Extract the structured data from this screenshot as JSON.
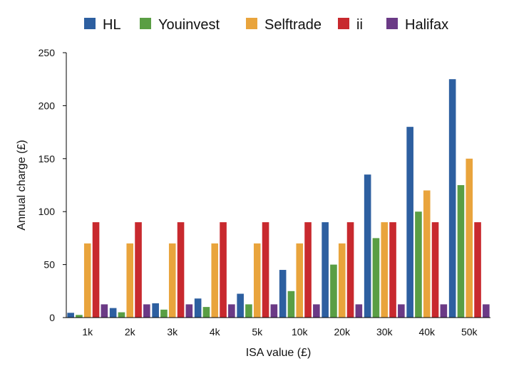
{
  "chart_data": {
    "type": "bar",
    "title": "",
    "xlabel": "ISA value (£)",
    "ylabel": "Annual charge (£)",
    "ylim": [
      0,
      250
    ],
    "yticks": [
      0,
      50,
      100,
      150,
      200,
      250
    ],
    "grid": false,
    "legend_position": "top",
    "categories": [
      "1k",
      "2k",
      "3k",
      "4k",
      "5k",
      "10k",
      "20k",
      "30k",
      "40k",
      "50k"
    ],
    "series": [
      {
        "name": "HL",
        "color": "#2d5fa0",
        "values": [
          4.5,
          9,
          13.5,
          18,
          22.5,
          45,
          90,
          135,
          180,
          225
        ]
      },
      {
        "name": "Youinvest",
        "color": "#5a9e44",
        "values": [
          2.5,
          5,
          7.5,
          10,
          12.5,
          25,
          50,
          75,
          100,
          125
        ]
      },
      {
        "name": "Selftrade",
        "color": "#e9a43c",
        "values": [
          70,
          70,
          70,
          70,
          70,
          70,
          70,
          90,
          120,
          150
        ]
      },
      {
        "name": "ii",
        "color": "#c8292e",
        "values": [
          90,
          90,
          90,
          90,
          90,
          90,
          90,
          90,
          90,
          90
        ]
      },
      {
        "name": "Halifax",
        "color": "#6b3a86",
        "values": [
          12.5,
          12.5,
          12.5,
          12.5,
          12.5,
          12.5,
          12.5,
          12.5,
          12.5,
          12.5
        ]
      }
    ]
  }
}
